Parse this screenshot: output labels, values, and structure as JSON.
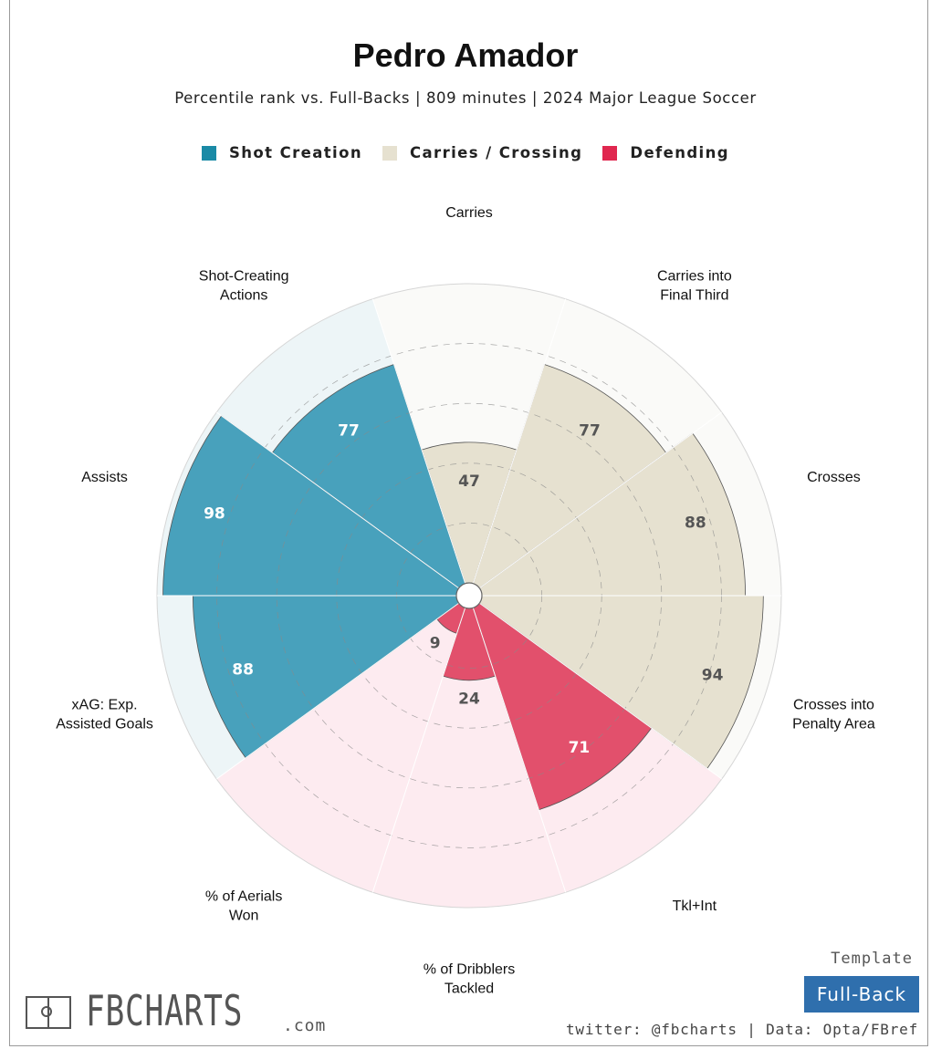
{
  "title": "Pedro Amador",
  "subtitle": "Percentile rank vs. Full-Backs | 809 minutes | 2024 Major League Soccer",
  "legend": [
    {
      "label": "Shot Creation",
      "color": "#1a8aa6"
    },
    {
      "label": "Carries / Crossing",
      "color": "#e6e1d0"
    },
    {
      "label": "Defending",
      "color": "#e0274f"
    }
  ],
  "chart_data": {
    "type": "polar-bar",
    "title": "Pedro Amador",
    "rmax": 100,
    "gridlines": [
      20,
      40,
      60,
      80
    ],
    "categories": [
      {
        "label": [
          "Carries"
        ],
        "value": 47,
        "group": "Carries / Crossing"
      },
      {
        "label": [
          "Carries into",
          "Final Third"
        ],
        "value": 77,
        "group": "Carries / Crossing"
      },
      {
        "label": [
          "Crosses"
        ],
        "value": 88,
        "group": "Carries / Crossing"
      },
      {
        "label": [
          "Crosses into",
          "Penalty Area"
        ],
        "value": 94,
        "group": "Carries / Crossing"
      },
      {
        "label": [
          "Tkl+Int"
        ],
        "value": 71,
        "group": "Defending"
      },
      {
        "label": [
          "% of Dribblers",
          "Tackled"
        ],
        "value": 24,
        "group": "Defending"
      },
      {
        "label": [
          "% of Aerials",
          "Won"
        ],
        "value": 9,
        "group": "Defending"
      },
      {
        "label": [
          "xAG: Exp.",
          "Assisted Goals"
        ],
        "value": 88,
        "group": "Shot Creation"
      },
      {
        "label": [
          "Assists"
        ],
        "value": 98,
        "group": "Shot Creation"
      },
      {
        "label": [
          "Shot-Creating",
          "Actions"
        ],
        "value": 77,
        "group": "Shot Creation"
      }
    ],
    "group_colors": {
      "Shot Creation": {
        "bar": "#48a1bc",
        "bg": "#edf5f7",
        "text": "#ffffff"
      },
      "Carries / Crossing": {
        "bar": "#e6e1d0",
        "bg": "#fafaf8",
        "text": "#555555"
      },
      "Defending": {
        "bar": "#e2506c",
        "bg": "#fdebf0",
        "text": "#555555"
      }
    },
    "value_text_color_override": {
      "Defending_high": "#ffffff"
    }
  },
  "footer": {
    "brand": "FBCHARTS",
    "brand_suffix": ".com",
    "template_label": "Template",
    "template_value": "Full-Back",
    "credits": "twitter: @fbcharts | Data: Opta/FBref"
  }
}
